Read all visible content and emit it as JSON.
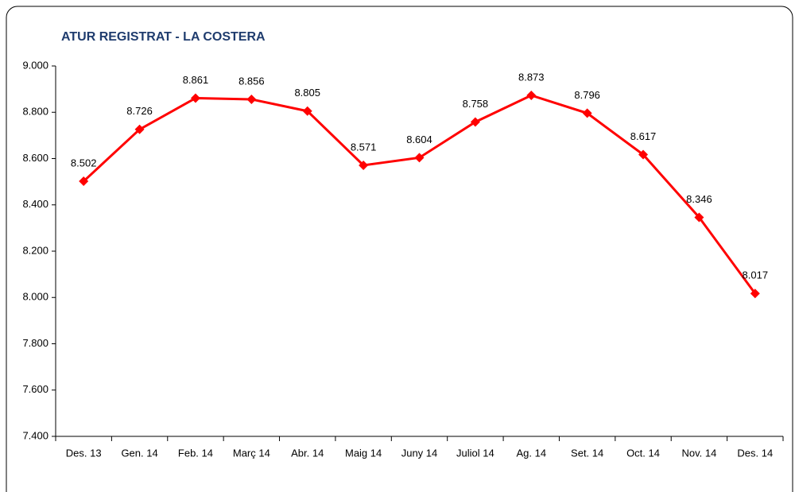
{
  "chart_data": {
    "type": "line",
    "title": "ATUR REGISTRAT - LA COSTERA",
    "categories": [
      "Des. 13",
      "Gen. 14",
      "Feb. 14",
      "Març 14",
      "Abr. 14",
      "Maig 14",
      "Juny 14",
      "Juliol 14",
      "Ag. 14",
      "Set. 14",
      "Oct. 14",
      "Nov. 14",
      "Des. 14"
    ],
    "values": [
      8502,
      8726,
      8861,
      8856,
      8805,
      8571,
      8604,
      8758,
      8873,
      8796,
      8617,
      8346,
      8017
    ],
    "value_labels": [
      "8.502",
      "8.726",
      "8.861",
      "8.856",
      "8.805",
      "8.571",
      "8.604",
      "8.758",
      "8.873",
      "8.796",
      "8.617",
      "8.346",
      "8.017"
    ],
    "color": "#ff0000",
    "ylim": [
      7400,
      9000
    ],
    "yticks": [
      {
        "value": 7400,
        "label": "7.400"
      },
      {
        "value": 7600,
        "label": "7.600"
      },
      {
        "value": 7800,
        "label": "7.800"
      },
      {
        "value": 8000,
        "label": "8.000"
      },
      {
        "value": 8200,
        "label": "8.200"
      },
      {
        "value": 8400,
        "label": "8.400"
      },
      {
        "value": 8600,
        "label": "8.600"
      },
      {
        "value": 8800,
        "label": "8.800"
      },
      {
        "value": 9000,
        "label": "9.000"
      }
    ],
    "grid": false
  }
}
